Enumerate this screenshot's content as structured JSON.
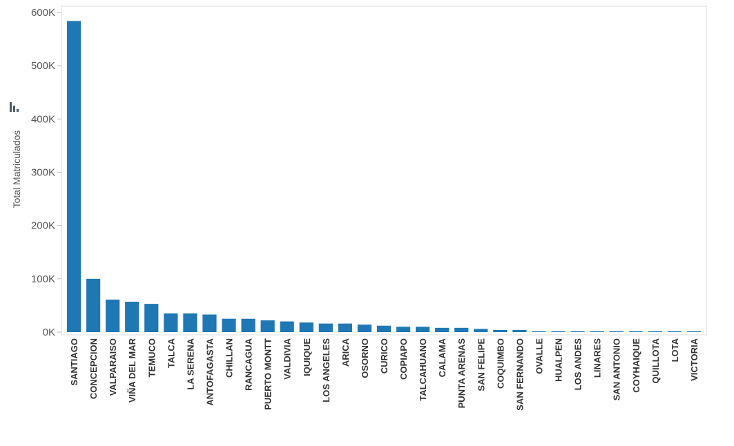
{
  "chart_data": {
    "type": "bar",
    "ylabel": "Total Matriculados",
    "ylim": [
      0,
      600000
    ],
    "yticks": [
      {
        "value": 0,
        "label": "0K"
      },
      {
        "value": 100000,
        "label": "100K"
      },
      {
        "value": 200000,
        "label": "200K"
      },
      {
        "value": 300000,
        "label": "300K"
      },
      {
        "value": 400000,
        "label": "400K"
      },
      {
        "value": 500000,
        "label": "500K"
      },
      {
        "value": 600000,
        "label": "600K"
      }
    ],
    "grid": false,
    "bar_color": "#1f77b4",
    "categories": [
      "SANTIAGO",
      "CONCEPCION",
      "VALPARAISO",
      "VIÑA DEL MAR",
      "TEMUCO",
      "TALCA",
      "LA SERENA",
      "ANTOFAGASTA",
      "CHILLAN",
      "RANCAGUA",
      "PUERTO MONTT",
      "VALDIVIA",
      "IQUIQUE",
      "LOS ANGELES",
      "ARICA",
      "OSORNO",
      "CURICO",
      "COPIAPO",
      "TALCAHUANO",
      "CALAMA",
      "PUNTA ARENAS",
      "SAN FELIPE",
      "COQUIMBO",
      "SAN FERNANDO",
      "OVALLE",
      "HUALPEN",
      "LOS ANDES",
      "LINARES",
      "SAN ANTONIO",
      "COYHAIQUE",
      "QUILLOTA",
      "LOTA",
      "VICTORIA"
    ],
    "values": [
      584000,
      100000,
      61000,
      57000,
      53000,
      35000,
      35000,
      33000,
      25000,
      25000,
      22000,
      20000,
      18000,
      16000,
      16000,
      14000,
      12000,
      10000,
      10000,
      8000,
      8000,
      6000,
      4000,
      4000,
      1500,
      1500,
      1500,
      1500,
      1500,
      1500,
      1500,
      1500,
      1500
    ]
  },
  "toolbar": {
    "sort_icon": "sort-bars-icon"
  }
}
